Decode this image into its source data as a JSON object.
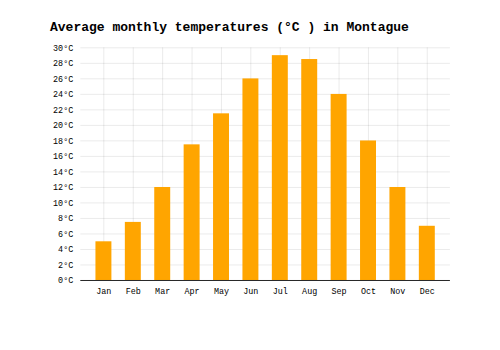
{
  "chart_data": {
    "type": "bar",
    "title": "Average monthly temperatures (°C ) in Montague",
    "categories": [
      "Jan",
      "Feb",
      "Mar",
      "Apr",
      "May",
      "Jun",
      "Jul",
      "Aug",
      "Sep",
      "Oct",
      "Nov",
      "Dec"
    ],
    "values": [
      5,
      7.5,
      12,
      17.5,
      21.5,
      26,
      29,
      28.5,
      24,
      18,
      12,
      7
    ],
    "color": "#FFA500",
    "ylim": [
      0,
      30
    ],
    "yticks": [
      {
        "value": 0,
        "label": "0°C"
      },
      {
        "value": 2,
        "label": "2°C"
      },
      {
        "value": 4,
        "label": "4°C"
      },
      {
        "value": 6,
        "label": "6°C"
      },
      {
        "value": 8,
        "label": "8°C"
      },
      {
        "value": 10,
        "label": "10°C"
      },
      {
        "value": 12,
        "label": "12°C"
      },
      {
        "value": 14,
        "label": "14°C"
      },
      {
        "value": 16,
        "label": "16°C"
      },
      {
        "value": 18,
        "label": "18°C"
      },
      {
        "value": 20,
        "label": "20°C"
      },
      {
        "value": 22,
        "label": "22°C"
      },
      {
        "value": 24,
        "label": "24°C"
      },
      {
        "value": 26,
        "label": "26°C"
      },
      {
        "value": 28,
        "label": "28°C"
      },
      {
        "value": 30,
        "label": "30°C"
      }
    ],
    "grid": true
  }
}
